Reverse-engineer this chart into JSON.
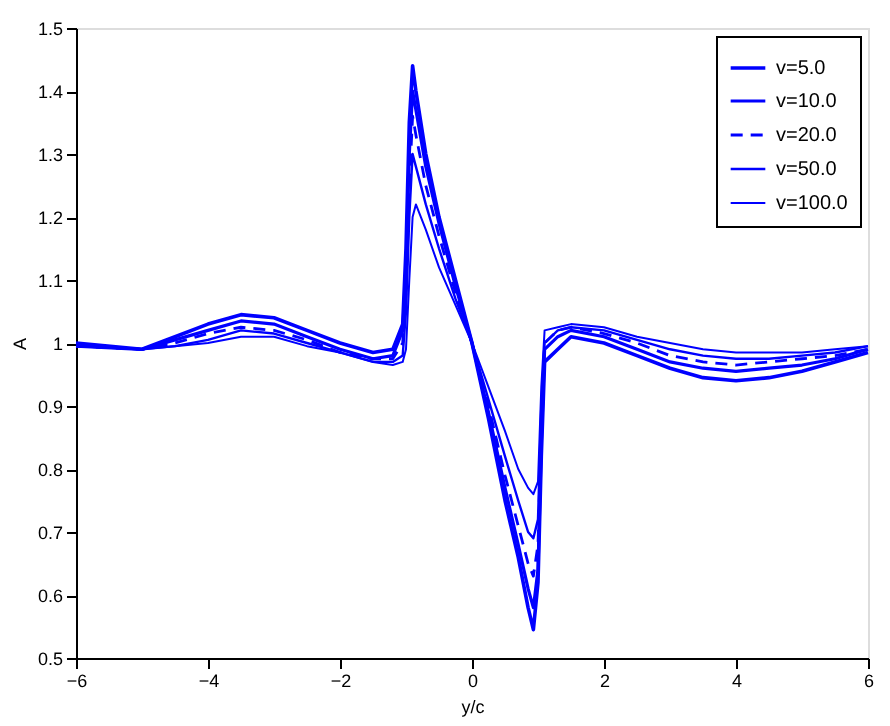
{
  "chart_data": {
    "type": "line",
    "xlabel": "y/c",
    "ylabel": "A",
    "x": [
      -6,
      -5,
      -4.5,
      -4,
      -3.5,
      -3,
      -2.5,
      -2,
      -1.5,
      -1.2,
      -1.05,
      -1.0,
      -0.95,
      -0.9,
      -0.85,
      -0.7,
      -0.5,
      -0.25,
      0,
      0.25,
      0.5,
      0.7,
      0.85,
      0.93,
      1.0,
      1.05,
      1.1,
      1.3,
      1.5,
      2,
      2.5,
      3,
      3.5,
      4,
      4.5,
      5,
      5.5,
      6
    ],
    "series": [
      {
        "name": "v=5.0",
        "color": "#0000ff",
        "line_style": "solid",
        "values": [
          1.0,
          0.99,
          1.01,
          1.03,
          1.045,
          1.04,
          1.02,
          1.0,
          0.985,
          0.99,
          1.03,
          1.15,
          1.35,
          1.44,
          1.4,
          1.3,
          1.2,
          1.1,
          1.0,
          0.88,
          0.75,
          0.66,
          0.58,
          0.545,
          0.62,
          0.82,
          0.97,
          0.99,
          1.01,
          1.0,
          0.98,
          0.96,
          0.945,
          0.94,
          0.945,
          0.955,
          0.97,
          0.985
        ]
      },
      {
        "name": "v=10.0",
        "color": "#0000ff",
        "line_style": "solid",
        "values": [
          0.995,
          0.99,
          1.005,
          1.02,
          1.035,
          1.03,
          1.01,
          0.99,
          0.975,
          0.98,
          1.02,
          1.12,
          1.3,
          1.4,
          1.37,
          1.28,
          1.19,
          1.09,
          1.0,
          0.89,
          0.77,
          0.68,
          0.61,
          0.58,
          0.64,
          0.84,
          0.99,
          1.01,
          1.02,
          1.01,
          0.99,
          0.97,
          0.96,
          0.955,
          0.96,
          0.965,
          0.975,
          0.99
        ]
      },
      {
        "name": "v=20.0",
        "color": "#0000ff",
        "line_style": "dashed",
        "values": [
          0.995,
          0.99,
          1.0,
          1.015,
          1.025,
          1.02,
          1.005,
          0.985,
          0.975,
          0.975,
          1.0,
          1.08,
          1.25,
          1.36,
          1.33,
          1.25,
          1.17,
          1.08,
          1.0,
          0.9,
          0.79,
          0.71,
          0.65,
          0.63,
          0.68,
          0.87,
          1.0,
          1.02,
          1.025,
          1.015,
          1.0,
          0.98,
          0.97,
          0.965,
          0.97,
          0.975,
          0.98,
          0.99
        ]
      },
      {
        "name": "v=50.0",
        "color": "#0000ff",
        "line_style": "solid",
        "values": [
          0.995,
          0.99,
          0.995,
          1.005,
          1.02,
          1.015,
          1.0,
          0.985,
          0.97,
          0.97,
          0.98,
          1.05,
          1.2,
          1.3,
          1.28,
          1.22,
          1.15,
          1.07,
          1.0,
          0.91,
          0.82,
          0.75,
          0.7,
          0.69,
          0.72,
          0.9,
          1.0,
          1.02,
          1.025,
          1.02,
          1.005,
          0.99,
          0.98,
          0.975,
          0.975,
          0.98,
          0.985,
          0.995
        ]
      },
      {
        "name": "v=100.0",
        "color": "#0000ff",
        "line_style": "solid",
        "values": [
          0.995,
          0.99,
          0.995,
          1.0,
          1.01,
          1.01,
          0.995,
          0.985,
          0.97,
          0.965,
          0.97,
          0.99,
          1.1,
          1.2,
          1.22,
          1.18,
          1.12,
          1.06,
          1.0,
          0.93,
          0.86,
          0.8,
          0.77,
          0.76,
          0.78,
          0.93,
          1.02,
          1.025,
          1.03,
          1.025,
          1.01,
          1.0,
          0.99,
          0.985,
          0.985,
          0.985,
          0.99,
          0.995
        ]
      }
    ],
    "xlim": [
      -6,
      6
    ],
    "xticks": [
      -6,
      -4,
      -2,
      0,
      2,
      4,
      6
    ],
    "ylim": [
      0.5,
      1.5
    ],
    "yticks": [
      0.5,
      0.6,
      0.7,
      0.8,
      0.9,
      1,
      1.1,
      1.2,
      1.3,
      1.4,
      1.5
    ],
    "grid": false,
    "legend": "top right",
    "marker": "none"
  }
}
